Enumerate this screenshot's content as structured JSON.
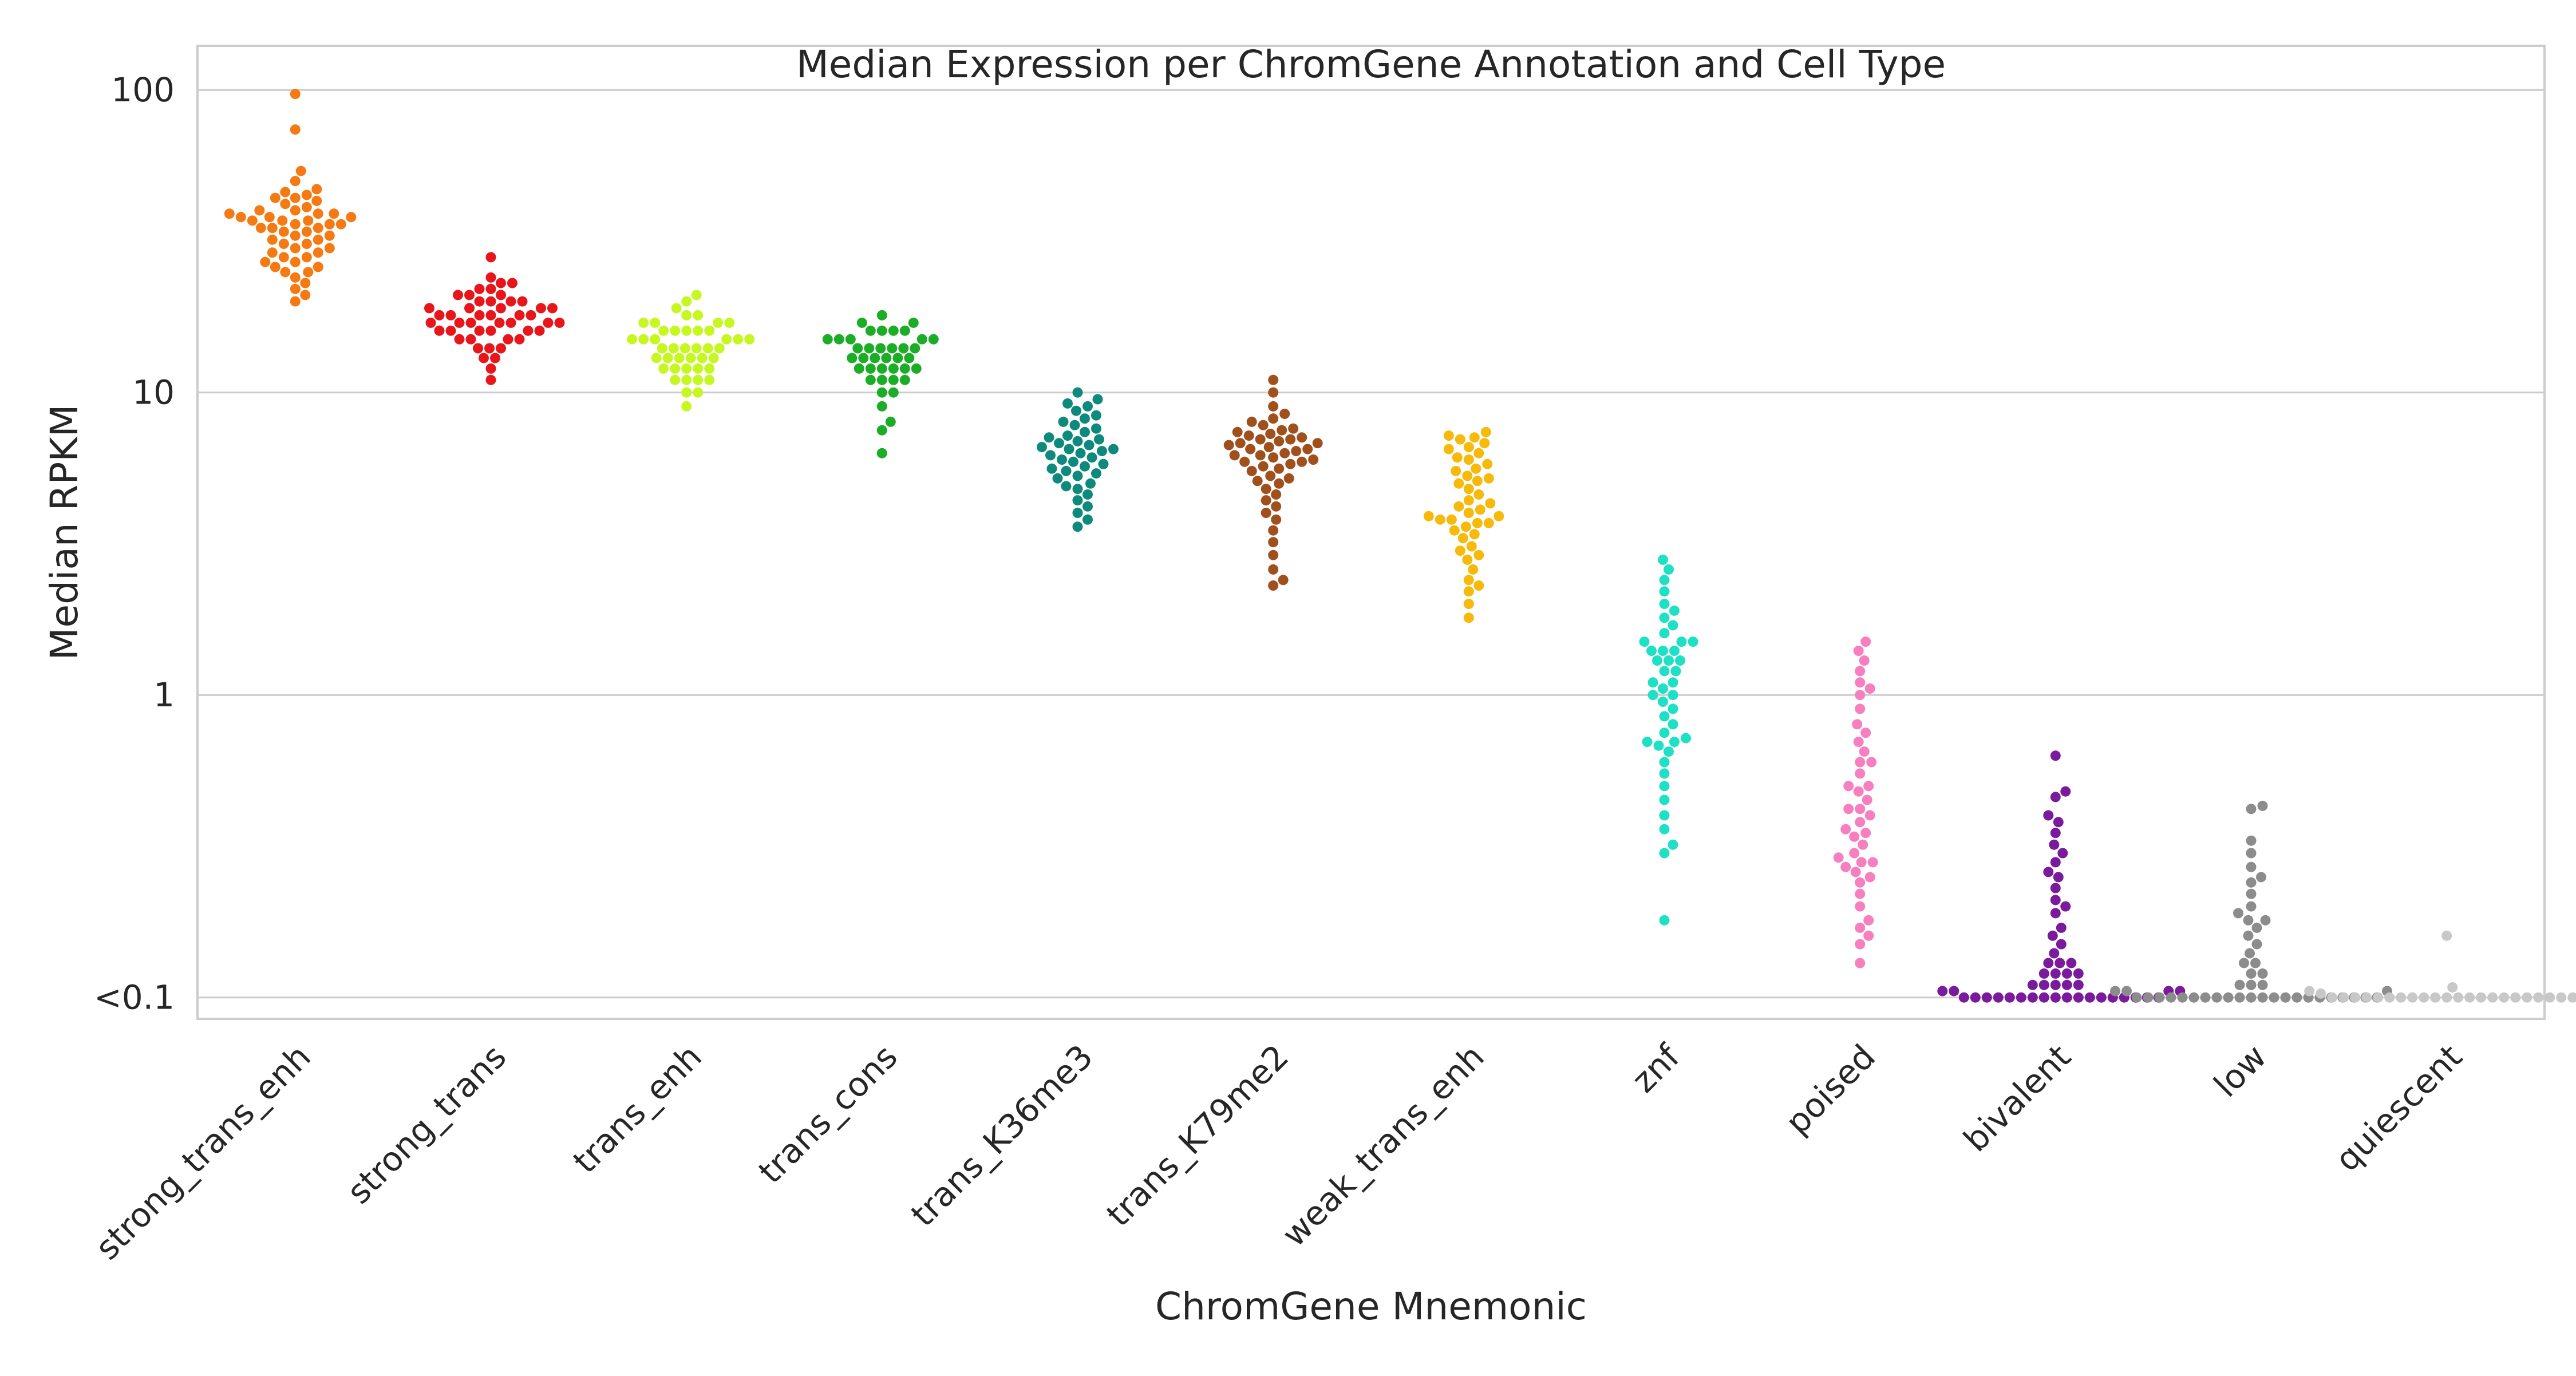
{
  "chart_data": {
    "type": "scatter",
    "subtype": "swarm",
    "title": "Median Expression per ChromGene Annotation and Cell Type",
    "xlabel": "ChromGene Mnemonic",
    "ylabel": "Median RPKM",
    "yscale": "log",
    "ylim": [
      0.085,
      140
    ],
    "yticks": [
      {
        "value": 100,
        "label": "100"
      },
      {
        "value": 10,
        "label": "10"
      },
      {
        "value": 1,
        "label": "1"
      },
      {
        "value": 0.1,
        "label": "<0.1"
      }
    ],
    "grid": "horizontal",
    "legend": "none",
    "categories": [
      {
        "name": "strong_trans_enh",
        "color": "#f57a13",
        "values": [
          97,
          74,
          54,
          50,
          47,
          45,
          44,
          44,
          42,
          41,
          40,
          39,
          39,
          38,
          38,
          37,
          37,
          36,
          36,
          35,
          35,
          34,
          34,
          33,
          33,
          32,
          32,
          31,
          31,
          30,
          30,
          29,
          29,
          28,
          28,
          27,
          27,
          26,
          26,
          25,
          25,
          24,
          23,
          22,
          21,
          20,
          38,
          37,
          36,
          35,
          39,
          40,
          43,
          46
        ]
      },
      {
        "name": "strong_trans",
        "color": "#e8161b",
        "values": [
          28,
          24,
          23,
          23,
          22,
          22,
          21,
          21,
          21,
          20,
          20,
          20,
          19,
          19,
          19,
          19,
          18,
          18,
          18,
          18,
          18,
          17,
          17,
          17,
          17,
          17,
          16,
          16,
          16,
          16,
          16,
          15,
          15,
          15,
          15,
          14,
          14,
          14,
          13,
          13,
          12,
          11,
          17,
          18,
          19,
          20,
          16,
          17
        ]
      },
      {
        "name": "trans_enh",
        "color": "#c6f721",
        "values": [
          21,
          20,
          19,
          18,
          18,
          17,
          17,
          17,
          16,
          16,
          16,
          16,
          15,
          15,
          15,
          15,
          15,
          14,
          14,
          14,
          14,
          14,
          13,
          13,
          13,
          13,
          13,
          12,
          12,
          12,
          12,
          11,
          11,
          11,
          11,
          10,
          10,
          9,
          16,
          15,
          14,
          13,
          12,
          17
        ]
      },
      {
        "name": "trans_cons",
        "color": "#1cad27",
        "values": [
          18,
          17,
          17,
          16,
          16,
          16,
          15,
          15,
          15,
          15,
          14,
          14,
          14,
          14,
          14,
          13,
          13,
          13,
          13,
          13,
          12,
          12,
          12,
          12,
          12,
          11,
          11,
          11,
          11,
          10,
          10,
          9,
          8,
          7.5,
          6.3,
          14,
          13,
          12,
          15,
          16
        ]
      },
      {
        "name": "trans_K36me3",
        "color": "#0e8a7d",
        "values": [
          10,
          9.5,
          9.2,
          9,
          8.7,
          8.4,
          8.2,
          8,
          7.8,
          7.6,
          7.4,
          7.2,
          7,
          6.9,
          6.8,
          6.6,
          6.5,
          6.4,
          6.2,
          6.1,
          6,
          5.9,
          5.8,
          5.6,
          5.5,
          5.4,
          5.2,
          5,
          4.9,
          4.8,
          4.6,
          4.4,
          4.2,
          4,
          3.8,
          3.6,
          6.5,
          6.3,
          7.1,
          5.7,
          6.7,
          5.3
        ]
      },
      {
        "name": "trans_K79me2",
        "color": "#a0501c",
        "values": [
          11,
          10,
          9,
          8.5,
          8.2,
          8,
          7.8,
          7.6,
          7.4,
          7.2,
          7.1,
          7,
          6.9,
          6.8,
          6.7,
          6.6,
          6.5,
          6.4,
          6.3,
          6.2,
          6.1,
          6,
          5.9,
          5.8,
          5.7,
          5.6,
          5.5,
          5.3,
          5.2,
          5,
          4.8,
          4.6,
          4.4,
          4.2,
          4,
          3.8,
          3.5,
          3.2,
          2.9,
          2.6,
          2.4,
          2.3,
          7,
          6.8,
          6.5,
          6.2,
          5.9,
          7.3,
          7.5,
          5.1
        ]
      },
      {
        "name": "weak_trans_enh",
        "color": "#f7b90a",
        "values": [
          7.4,
          7.2,
          7,
          6.8,
          6.5,
          6.3,
          6.1,
          6,
          5.8,
          5.6,
          5.5,
          5.3,
          5.1,
          5,
          4.8,
          4.6,
          4.4,
          4.3,
          4.1,
          4,
          3.9,
          3.8,
          3.7,
          3.6,
          3.5,
          3.4,
          3.3,
          3.1,
          3,
          2.9,
          2.8,
          2.6,
          2.4,
          2.3,
          2.2,
          2,
          1.8,
          3.8,
          3.7,
          4.2,
          5.2,
          6.6,
          7.1,
          3.9
        ]
      },
      {
        "name": "znf",
        "color": "#1ee0c5",
        "values": [
          2.8,
          2.6,
          2.4,
          2.2,
          2,
          1.9,
          1.8,
          1.7,
          1.6,
          1.5,
          1.5,
          1.4,
          1.4,
          1.3,
          1.3,
          1.2,
          1.2,
          1.1,
          1.1,
          1.05,
          1,
          0.95,
          0.9,
          0.85,
          0.8,
          0.75,
          0.72,
          0.7,
          0.68,
          0.65,
          0.6,
          0.55,
          0.5,
          0.45,
          0.4,
          0.36,
          0.32,
          0.3,
          0.18,
          1.5,
          1.3,
          0.7,
          1.4,
          1.0
        ]
      },
      {
        "name": "poised",
        "color": "#f77fbf",
        "values": [
          1.5,
          1.4,
          1.3,
          1.2,
          1.1,
          1.05,
          1,
          0.9,
          0.8,
          0.75,
          0.7,
          0.65,
          0.6,
          0.55,
          0.5,
          0.48,
          0.45,
          0.42,
          0.4,
          0.38,
          0.36,
          0.34,
          0.32,
          0.3,
          0.29,
          0.28,
          0.27,
          0.26,
          0.25,
          0.24,
          0.22,
          0.2,
          0.18,
          0.17,
          0.16,
          0.15,
          0.13,
          0.28,
          0.35,
          0.42,
          0.5,
          0.6
        ]
      },
      {
        "name": "bivalent",
        "color": "#7a1a9c",
        "values": [
          0.63,
          0.48,
          0.46,
          0.4,
          0.38,
          0.35,
          0.32,
          0.3,
          0.28,
          0.26,
          0.25,
          0.23,
          0.21,
          0.2,
          0.19,
          0.17,
          0.16,
          0.15,
          0.14,
          0.13,
          0.13,
          0.12,
          0.12,
          0.12,
          0.11,
          0.11,
          0.11,
          0.11,
          0.105,
          0.105,
          0.105,
          0.105,
          0.1,
          0.1,
          0.1,
          0.1,
          0.1,
          0.1,
          0.1,
          0.1,
          0.1,
          0.1,
          0.1,
          0.1,
          0.1,
          0.1,
          0.1,
          0.1,
          0.1,
          0.1,
          0.13,
          0.12,
          0.11
        ]
      },
      {
        "name": "low",
        "color": "#8c8c8c",
        "values": [
          0.43,
          0.42,
          0.33,
          0.3,
          0.27,
          0.25,
          0.24,
          0.22,
          0.2,
          0.19,
          0.18,
          0.18,
          0.17,
          0.16,
          0.15,
          0.14,
          0.13,
          0.13,
          0.12,
          0.12,
          0.11,
          0.11,
          0.11,
          0.1,
          0.1,
          0.1,
          0.1,
          0.1,
          0.1,
          0.1,
          0.1,
          0.1,
          0.1,
          0.1,
          0.1,
          0.1,
          0.1,
          0.1,
          0.1,
          0.1,
          0.1,
          0.1,
          0.1,
          0.1,
          0.1,
          0.105,
          0.105,
          0.105
        ]
      },
      {
        "name": "quiescent",
        "color": "#c8c8c8",
        "values": [
          0.16,
          0.108,
          0.105,
          0.1,
          0.1,
          0.1,
          0.1,
          0.1,
          0.1,
          0.1,
          0.1,
          0.1,
          0.1,
          0.1,
          0.1,
          0.1,
          0.1,
          0.1,
          0.1,
          0.1,
          0.1,
          0.1,
          0.1,
          0.1,
          0.1,
          0.105,
          0.103
        ]
      }
    ]
  }
}
